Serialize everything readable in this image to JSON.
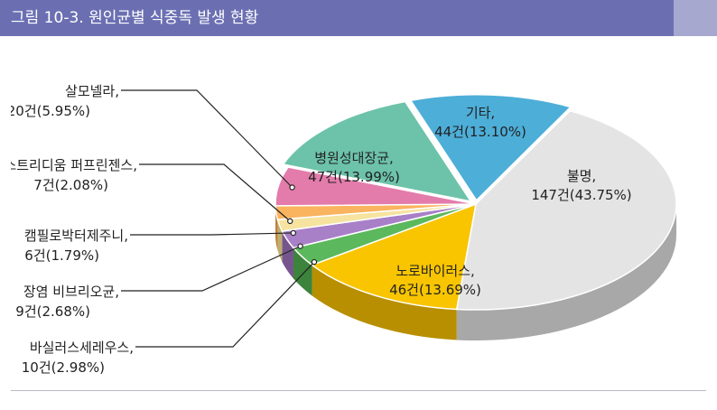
{
  "figure": {
    "title": "그림 10-3. 원인균별 식중독 발생 현황"
  },
  "colors": {
    "title_bar": "#6b6fb2",
    "title_accent": "#a6a8cf"
  },
  "chart_data": {
    "type": "pie",
    "title": "그림 10-3. 원인균별 식중독 발생 현황",
    "style": "3d-exploded",
    "unit": "건",
    "slices": [
      {
        "name": "불명",
        "value": 147,
        "percent": 43.75,
        "label_name": "불명,",
        "label_value": "147건(43.75%)",
        "color": "#e4e4e4",
        "side": "#a8a8a8",
        "label_mode": "inside"
      },
      {
        "name": "노로바이러스",
        "value": 46,
        "percent": 13.69,
        "label_name": "노로바이러스,",
        "label_value": "46건(13.69%)",
        "color": "#f8c500",
        "side": "#b88f00",
        "label_mode": "inside"
      },
      {
        "name": "바실러스세레우스",
        "value": 10,
        "percent": 2.98,
        "label_name": "바실러스세레우스,",
        "label_value": "10건(2.98%)",
        "color": "#5cb85c",
        "side": "#3c833c",
        "label_mode": "callout"
      },
      {
        "name": "장염 비브리오균",
        "value": 9,
        "percent": 2.68,
        "label_name": "장염 비브리오균,",
        "label_value": "9건(2.68%)",
        "color": "#a880c8",
        "side": "#76558f",
        "label_mode": "callout"
      },
      {
        "name": "캠필로박터제주니",
        "value": 6,
        "percent": 1.79,
        "label_name": "캠필로박터제주니,",
        "label_value": "6건(1.79%)",
        "color": "#f6e3a0",
        "side": "#bfae70",
        "label_mode": "callout"
      },
      {
        "name": "클로스트리디움 퍼프린젠스",
        "value": 7,
        "percent": 2.08,
        "label_name": "클로스트리디움 퍼프린젠스,",
        "label_value": "7건(2.08%)",
        "color": "#fab35e",
        "side": "#c07e33",
        "label_mode": "callout"
      },
      {
        "name": "살모넬라",
        "value": 20,
        "percent": 5.95,
        "label_name": "살모넬라,",
        "label_value": "20건(5.95%)",
        "color": "#e37cab",
        "side": "#a95078",
        "label_mode": "callout"
      },
      {
        "name": "병원성대장균",
        "value": 47,
        "percent": 13.99,
        "label_name": "병원성대장균,",
        "label_value": "47건(13.99%)",
        "color": "#6cc3a9",
        "side": "#468a76",
        "label_mode": "inside"
      },
      {
        "name": "기타",
        "value": 44,
        "percent": 13.1,
        "label_name": "기타,",
        "label_value": "44건(13.10%)",
        "color": "#4daed8",
        "side": "#2f7fa3",
        "label_mode": "inside"
      }
    ]
  }
}
